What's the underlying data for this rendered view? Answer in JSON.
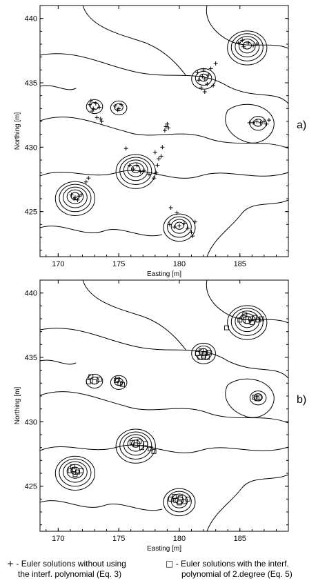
{
  "chart_data": [
    {
      "type": "scatter",
      "panel_label": "a)",
      "xlabel": "Easting [m]",
      "ylabel": "Northing [m]",
      "xlim": [
        168.5,
        189
      ],
      "ylim": [
        421.5,
        441
      ],
      "xticks": [
        170,
        175,
        180,
        185
      ],
      "yticks": [
        425,
        430,
        435,
        440
      ],
      "background": "magnetic anomaly contour map",
      "anomalies": [
        {
          "x": 171.4,
          "y": 426.2,
          "rings": 5
        },
        {
          "x": 173.0,
          "y": 433.2,
          "rings": 2
        },
        {
          "x": 175.0,
          "y": 433.1,
          "rings": 2
        },
        {
          "x": 176.4,
          "y": 428.3,
          "rings": 5
        },
        {
          "x": 180.0,
          "y": 423.9,
          "rings": 4
        },
        {
          "x": 182.0,
          "y": 435.4,
          "rings": 3
        },
        {
          "x": 185.6,
          "y": 437.9,
          "rings": 5
        },
        {
          "x": 186.5,
          "y": 431.9,
          "rings": 2
        }
      ],
      "series": [
        {
          "marker": "+",
          "points": [
            [
              171.1,
              426.3
            ],
            [
              171.4,
              426.1
            ],
            [
              171.7,
              426.2
            ],
            [
              171.3,
              426.0
            ],
            [
              171.9,
              426.3
            ],
            [
              171.6,
              425.9
            ],
            [
              172.6,
              433.3
            ],
            [
              172.9,
              433.0
            ],
            [
              173.1,
              433.4
            ],
            [
              172.8,
              432.8
            ],
            [
              173.4,
              433.1
            ],
            [
              172.7,
              433.6
            ],
            [
              173.2,
              432.3
            ],
            [
              173.5,
              432.2
            ],
            [
              173.6,
              432.0
            ],
            [
              174.7,
              433.2
            ],
            [
              175.0,
              433.0
            ],
            [
              175.2,
              433.3
            ],
            [
              174.9,
              432.9
            ],
            [
              175.9,
              428.6
            ],
            [
              176.2,
              428.3
            ],
            [
              176.5,
              428.6
            ],
            [
              176.8,
              428.1
            ],
            [
              177.1,
              428.2
            ],
            [
              177.5,
              427.9
            ],
            [
              177.9,
              427.6
            ],
            [
              178.1,
              428.0
            ],
            [
              178.2,
              428.6
            ],
            [
              178.3,
              429.1
            ],
            [
              178.0,
              429.6
            ],
            [
              178.6,
              430.0
            ],
            [
              178.5,
              429.3
            ],
            [
              178.9,
              431.6
            ],
            [
              179.1,
              431.5
            ],
            [
              178.8,
              431.3
            ],
            [
              179.0,
              431.8
            ],
            [
              175.6,
              429.9
            ],
            [
              172.5,
              427.6
            ],
            [
              172.3,
              427.3
            ],
            [
              179.2,
              424.0
            ],
            [
              179.6,
              423.8
            ],
            [
              180.0,
              423.9
            ],
            [
              180.4,
              424.1
            ],
            [
              180.7,
              423.7
            ],
            [
              181.0,
              423.4
            ],
            [
              181.1,
              423.1
            ],
            [
              179.3,
              425.3
            ],
            [
              179.8,
              424.9
            ],
            [
              181.3,
              424.2
            ],
            [
              181.6,
              435.2
            ],
            [
              181.9,
              435.5
            ],
            [
              182.1,
              435.3
            ],
            [
              182.4,
              435.6
            ],
            [
              182.0,
              436.0
            ],
            [
              181.5,
              435.8
            ],
            [
              182.6,
              436.1
            ],
            [
              182.3,
              434.9
            ],
            [
              182.8,
              434.8
            ],
            [
              182.1,
              434.3
            ],
            [
              183.0,
              436.5
            ],
            [
              181.8,
              434.6
            ],
            [
              184.9,
              438.1
            ],
            [
              185.3,
              437.8
            ],
            [
              185.7,
              438.1
            ],
            [
              186.1,
              437.9
            ],
            [
              186.4,
              438.0
            ],
            [
              185.2,
              438.3
            ],
            [
              186.1,
              431.9
            ],
            [
              186.4,
              432.0
            ],
            [
              186.7,
              431.9
            ],
            [
              187.0,
              432.0
            ],
            [
              187.2,
              431.8
            ],
            [
              185.8,
              431.9
            ],
            [
              187.4,
              432.1
            ]
          ]
        }
      ]
    },
    {
      "type": "scatter",
      "panel_label": "b)",
      "xlabel": "Easting [m]",
      "ylabel": "Northing [m]",
      "xlim": [
        168.5,
        189
      ],
      "ylim": [
        421.5,
        441
      ],
      "xticks": [
        170,
        175,
        180,
        185
      ],
      "yticks": [
        425,
        430,
        435,
        440
      ],
      "background": "magnetic anomaly contour map",
      "anomalies": [
        {
          "x": 171.4,
          "y": 426.2,
          "rings": 5
        },
        {
          "x": 173.0,
          "y": 433.2,
          "rings": 2
        },
        {
          "x": 175.0,
          "y": 433.1,
          "rings": 2
        },
        {
          "x": 176.4,
          "y": 428.3,
          "rings": 5
        },
        {
          "x": 180.0,
          "y": 423.9,
          "rings": 4
        },
        {
          "x": 182.0,
          "y": 435.4,
          "rings": 3
        },
        {
          "x": 185.6,
          "y": 437.9,
          "rings": 5
        },
        {
          "x": 186.5,
          "y": 431.9,
          "rings": 2
        }
      ],
      "series": [
        {
          "marker": "square",
          "points": [
            [
              171.0,
              426.2
            ],
            [
              171.3,
              426.3
            ],
            [
              171.6,
              426.1
            ],
            [
              171.9,
              426.2
            ],
            [
              171.4,
              425.9
            ],
            [
              171.2,
              426.5
            ],
            [
              172.5,
              433.1
            ],
            [
              172.7,
              433.5
            ],
            [
              173.0,
              433.1
            ],
            [
              173.4,
              433.3
            ],
            [
              174.8,
              433.2
            ],
            [
              175.1,
              433.0
            ],
            [
              174.9,
              433.3
            ],
            [
              175.3,
              432.9
            ],
            [
              176.1,
              428.4
            ],
            [
              176.4,
              428.2
            ],
            [
              176.7,
              428.5
            ],
            [
              176.9,
              428.0
            ],
            [
              177.2,
              428.3
            ],
            [
              177.6,
              427.9
            ],
            [
              177.9,
              427.7
            ],
            [
              179.3,
              424.0
            ],
            [
              179.7,
              423.9
            ],
            [
              180.1,
              424.1
            ],
            [
              180.4,
              423.8
            ],
            [
              180.7,
              424.0
            ],
            [
              180.0,
              423.7
            ],
            [
              179.6,
              424.2
            ],
            [
              181.5,
              435.3
            ],
            [
              181.8,
              435.5
            ],
            [
              182.1,
              435.3
            ],
            [
              182.4,
              435.4
            ],
            [
              182.0,
              435.1
            ],
            [
              181.7,
              435.0
            ],
            [
              182.3,
              435.0
            ],
            [
              183.9,
              437.3
            ],
            [
              185.0,
              437.9
            ],
            [
              185.3,
              438.1
            ],
            [
              185.6,
              437.8
            ],
            [
              185.9,
              438.0
            ],
            [
              186.2,
              438.1
            ],
            [
              186.5,
              437.9
            ],
            [
              186.8,
              438.0
            ],
            [
              185.4,
              438.3
            ],
            [
              186.0,
              437.7
            ],
            [
              186.2,
              431.9
            ],
            [
              186.4,
              431.8
            ],
            [
              186.6,
              431.9
            ]
          ]
        }
      ]
    }
  ],
  "legend": [
    {
      "marker": "+",
      "text_line1": "- Euler solutions without using",
      "text_line2": "the interf. polynomial (Eq. 3)"
    },
    {
      "marker": "□",
      "text_line1": "- Euler solutions with the interf.",
      "text_line2": "polynomial of 2.degree (Eq. 5)"
    }
  ]
}
